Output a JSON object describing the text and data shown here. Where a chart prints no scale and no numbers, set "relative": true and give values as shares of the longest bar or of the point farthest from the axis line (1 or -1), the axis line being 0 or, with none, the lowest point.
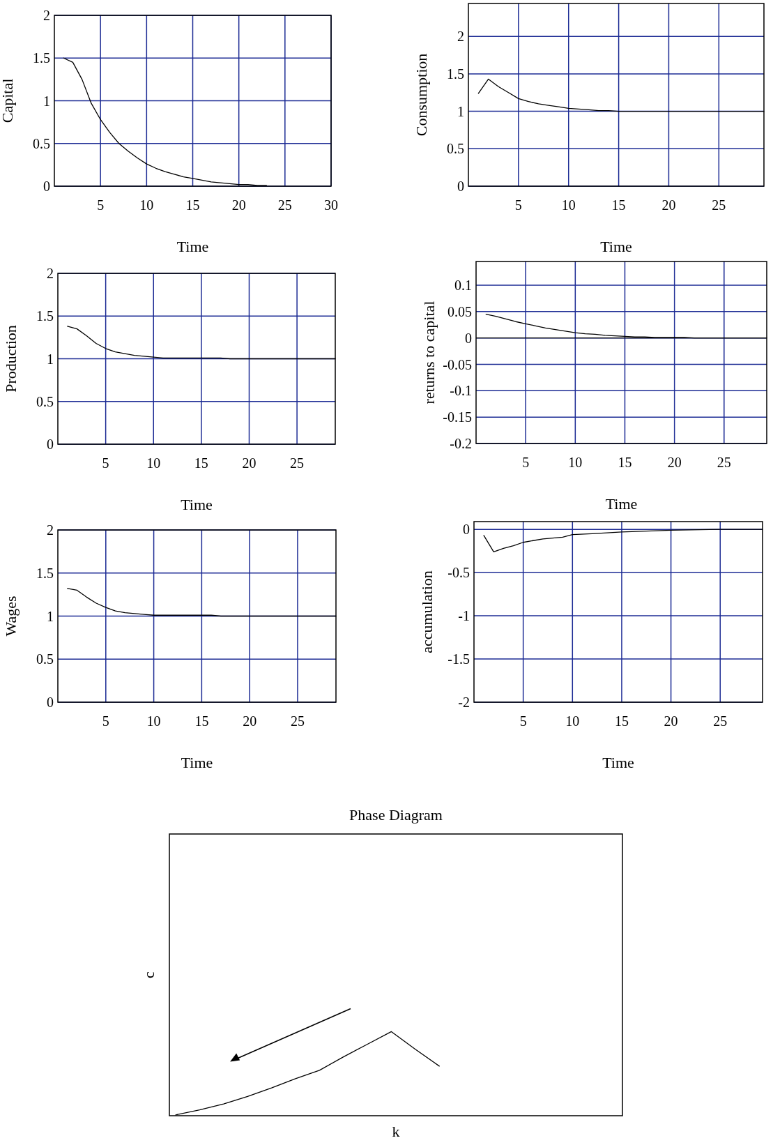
{
  "chart_data": [
    {
      "type": "line",
      "xlabel": "Time",
      "ylabel": "Capital",
      "x": [
        1,
        2,
        3,
        4,
        5,
        6,
        7,
        8,
        9,
        10,
        11,
        12,
        13,
        14,
        15,
        16,
        17,
        18,
        19,
        20,
        21,
        22,
        23
      ],
      "values": [
        1.5,
        1.45,
        1.25,
        0.97,
        0.78,
        0.63,
        0.5,
        0.41,
        0.33,
        0.26,
        0.21,
        0.17,
        0.14,
        0.11,
        0.09,
        0.07,
        0.05,
        0.04,
        0.03,
        0.02,
        0.02,
        0.01,
        0.01
      ],
      "color": "#000000",
      "xlim": [
        0,
        30
      ],
      "xticks": [
        5,
        10,
        15,
        20,
        25,
        30
      ],
      "ylim": [
        0,
        2
      ],
      "yticks": [
        0,
        0.5,
        1,
        1.5,
        2
      ],
      "grid": true
    },
    {
      "type": "line",
      "xlabel": "Time",
      "ylabel": "Consumption",
      "x": [
        1,
        2,
        3,
        4,
        5,
        6,
        7,
        8,
        9,
        10,
        11,
        12,
        13,
        14,
        15,
        20,
        25,
        29.5
      ],
      "values": [
        1.24,
        1.43,
        1.33,
        1.25,
        1.17,
        1.13,
        1.1,
        1.08,
        1.06,
        1.04,
        1.03,
        1.02,
        1.01,
        1.01,
        1,
        1,
        1,
        1
      ],
      "color": "#000000",
      "xlim": [
        0,
        29.5
      ],
      "xticks": [
        5,
        10,
        15,
        20,
        25
      ],
      "ylim": [
        0,
        2.44
      ],
      "yticks": [
        0,
        0.5,
        1,
        1.5,
        2
      ],
      "grid": true
    },
    {
      "type": "line",
      "xlabel": "Time",
      "ylabel": "Production",
      "x": [
        1,
        2,
        3,
        4,
        5,
        6,
        7,
        8,
        9,
        10,
        11,
        12,
        13,
        14,
        15,
        16,
        17,
        18,
        20,
        25,
        29
      ],
      "values": [
        1.38,
        1.35,
        1.27,
        1.18,
        1.12,
        1.08,
        1.06,
        1.04,
        1.03,
        1.02,
        1.01,
        1.01,
        1.01,
        1.01,
        1.01,
        1.01,
        1.01,
        1,
        1,
        1,
        1
      ],
      "color": "#000000",
      "xlim": [
        0,
        29
      ],
      "xticks": [
        5,
        10,
        15,
        20,
        25
      ],
      "ylim": [
        0,
        2
      ],
      "yticks": [
        0,
        0.5,
        1,
        1.5,
        2
      ],
      "grid": true
    },
    {
      "type": "line",
      "xlabel": "Time",
      "ylabel": "returns to capital",
      "x": [
        1,
        2,
        3,
        4,
        5,
        6,
        7,
        8,
        9,
        10,
        11,
        12,
        13,
        14,
        15,
        16,
        17,
        18,
        19,
        20,
        21,
        22,
        25,
        29.3
      ],
      "values": [
        0.045,
        0.041,
        0.036,
        0.031,
        0.027,
        0.023,
        0.019,
        0.016,
        0.013,
        0.01,
        0.008,
        0.007,
        0.005,
        0.004,
        0.003,
        0.002,
        0.002,
        0.001,
        0.001,
        0.001,
        0.001,
        0,
        0,
        0
      ],
      "color": "#000000",
      "xlim": [
        0,
        29.3
      ],
      "xticks": [
        5,
        10,
        15,
        20,
        25
      ],
      "ylim": [
        -0.2,
        0.145
      ],
      "yticks": [
        -0.2,
        -0.15,
        -0.1,
        -0.05,
        0,
        0.05,
        0.1
      ],
      "grid": true,
      "ref_lines": [
        {
          "axis": "y",
          "value": 0,
          "color": "#000000"
        }
      ]
    },
    {
      "type": "line",
      "xlabel": "Time",
      "ylabel": "Wages",
      "x": [
        1,
        2,
        3,
        4,
        5,
        6,
        7,
        8,
        9,
        10,
        11,
        12,
        13,
        14,
        15,
        16,
        17,
        20,
        25,
        29
      ],
      "values": [
        1.32,
        1.3,
        1.22,
        1.15,
        1.1,
        1.06,
        1.04,
        1.03,
        1.02,
        1.01,
        1.01,
        1.01,
        1.01,
        1.01,
        1.01,
        1.01,
        1,
        1,
        1,
        1
      ],
      "color": "#000000",
      "xlim": [
        0,
        29
      ],
      "xticks": [
        5,
        10,
        15,
        20,
        25
      ],
      "ylim": [
        0,
        2
      ],
      "yticks": [
        0,
        0.5,
        1,
        1.5,
        2
      ],
      "grid": true
    },
    {
      "type": "line",
      "xlabel": "Time",
      "ylabel": "accumulation",
      "x": [
        1,
        2,
        3,
        4,
        5,
        6,
        7,
        8,
        9,
        10,
        12,
        15,
        20,
        25,
        29.3
      ],
      "values": [
        -0.07,
        -0.26,
        -0.22,
        -0.19,
        -0.15,
        -0.13,
        -0.11,
        -0.1,
        -0.09,
        -0.06,
        -0.05,
        -0.03,
        -0.01,
        0,
        0
      ],
      "color": "#000000",
      "xlim": [
        0,
        29.3
      ],
      "xticks": [
        5,
        10,
        15,
        20,
        25
      ],
      "ylim": [
        -2,
        0.09
      ],
      "yticks": [
        -2,
        -1.5,
        -1,
        -0.5,
        0
      ],
      "grid": true
    },
    {
      "type": "line",
      "title": "Phase Diagram",
      "xlabel": "k",
      "ylabel": "c",
      "relative": true,
      "categories": [
        null,
        null,
        null,
        null,
        null,
        null,
        null,
        null,
        null,
        null,
        null,
        null,
        null,
        null,
        null,
        null,
        null,
        null,
        null
      ],
      "values": [
        0.01,
        0.07,
        0.14,
        0.23,
        0.33,
        0.44,
        0.54,
        0.7,
        0.85,
        1,
        0.79,
        0.59,
        null,
        null,
        null,
        null,
        null,
        null,
        null
      ],
      "color": "#000000",
      "tick_labels": false
    }
  ]
}
